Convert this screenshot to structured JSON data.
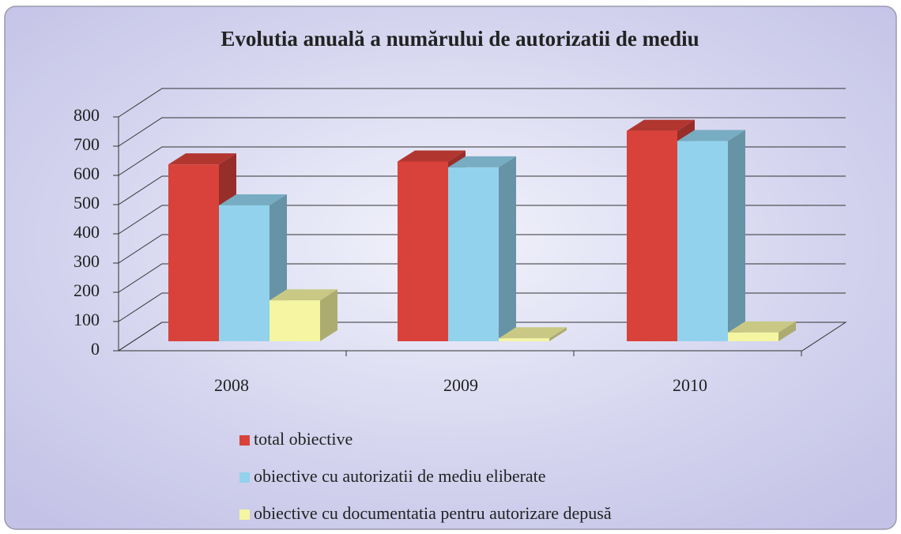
{
  "chart_data": {
    "type": "bar3d",
    "title": "Evolutia anuală a numărului de autorizatii de mediu",
    "categories": [
      "2008",
      "2009",
      "2010"
    ],
    "series": [
      {
        "name": "total obiective",
        "color": "#d9423a",
        "values": [
          605,
          615,
          720
        ]
      },
      {
        "name": "obiective cu autorizatii de mediu eliberate",
        "color": "#92d2ec",
        "values": [
          465,
          595,
          685
        ]
      },
      {
        "name": "obiective cu documentatia pentru autorizare depusă",
        "color": "#f5f5a2",
        "values": [
          140,
          10,
          30
        ]
      }
    ],
    "ylim": [
      0,
      800
    ],
    "yticks": [
      0,
      100,
      200,
      300,
      400,
      500,
      600,
      700,
      800
    ],
    "grid": true,
    "legend": "bottom"
  }
}
